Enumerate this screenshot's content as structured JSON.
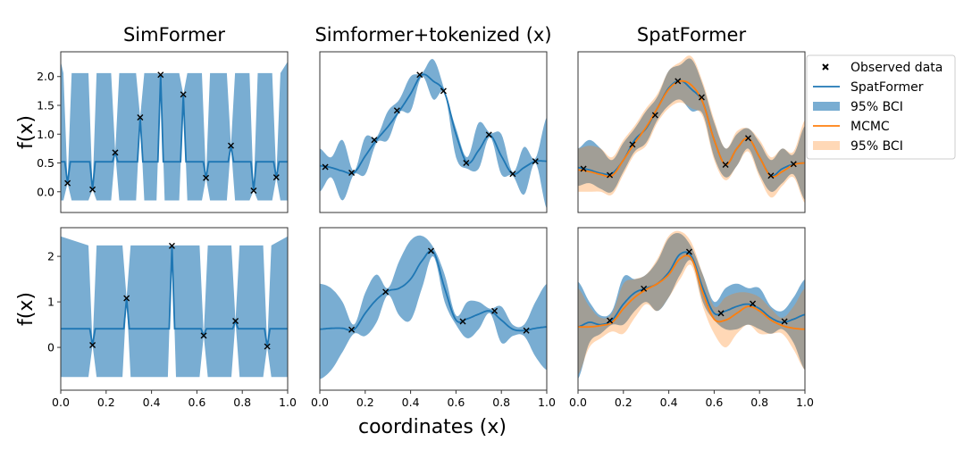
{
  "chart_data": {
    "type": "line",
    "xlabel": "coordinates (x)",
    "ylabel": "f(x)",
    "xlim": [
      0,
      1
    ],
    "x_ticks": [
      "0.0",
      "0.2",
      "0.4",
      "0.6",
      "0.8",
      "1.0"
    ],
    "colors": {
      "spatformer": "#1f77b4",
      "spatformer_band": "#1f77b4",
      "mcmc": "#ff7f0e",
      "mcmc_band": "#ffbb88",
      "observed": "#000000"
    },
    "legend": {
      "placement": "right",
      "entries": [
        "Observed data",
        "SpatFormer",
        "95% BCI",
        "MCMC",
        "95% BCI"
      ]
    },
    "columns": [
      "SimFormer",
      "Simformer+tokenized (x)",
      "SpatFormer"
    ],
    "rows": [
      {
        "ylim": [
          -0.36,
          2.43
        ],
        "y_ticks": [
          0.0,
          0.5,
          1.0,
          1.5,
          2.0
        ],
        "y_tick_labels": [
          "0.0",
          "0.5",
          "1.0",
          "1.5",
          "2.0"
        ],
        "panels": [
          {
            "title": "SimFormer",
            "kind": "simformer",
            "mean_baseline": 0.52,
            "band": [
              -0.15,
              2.06
            ],
            "observed": {
              "x": [
                0.03,
                0.14,
                0.24,
                0.35,
                0.44,
                0.54,
                0.64,
                0.75,
                0.85,
                0.95
              ],
              "y": [
                0.15,
                0.04,
                0.68,
                1.29,
                2.03,
                1.69,
                0.24,
                0.8,
                0.02,
                0.25
              ]
            }
          },
          {
            "title": "Simformer+tokenized (x)",
            "kind": "grid",
            "x": [
              0,
              0.05,
              0.1,
              0.15,
              0.2,
              0.25,
              0.3,
              0.35,
              0.4,
              0.45,
              0.5,
              0.55,
              0.6,
              0.65,
              0.7,
              0.75,
              0.8,
              0.85,
              0.9,
              0.95,
              1
            ],
            "mean": [
              0.45,
              0.42,
              0.36,
              0.33,
              0.62,
              0.9,
              1.13,
              1.4,
              1.7,
              2.03,
              1.92,
              1.72,
              1.0,
              0.5,
              0.72,
              0.98,
              0.62,
              0.31,
              0.42,
              0.53,
              0.53
            ],
            "upper": [
              0.75,
              0.6,
              0.9,
              0.36,
              0.95,
              0.95,
              1.4,
              1.6,
              2.0,
              2.06,
              2.3,
              1.76,
              1.1,
              0.6,
              1.2,
              1.02,
              1.0,
              0.34,
              0.78,
              0.58,
              1.3
            ],
            "lower": [
              0.0,
              0.25,
              -0.15,
              0.3,
              0.3,
              0.85,
              0.9,
              1.38,
              1.4,
              2.0,
              1.6,
              1.7,
              0.6,
              0.4,
              0.4,
              0.95,
              0.3,
              0.28,
              -0.05,
              0.5,
              -0.3
            ],
            "observed": {
              "x": [
                0.024,
                0.14,
                0.24,
                0.34,
                0.44,
                0.545,
                0.645,
                0.745,
                0.85,
                0.95
              ],
              "y": [
                0.43,
                0.33,
                0.9,
                1.41,
                2.03,
                1.75,
                0.5,
                0.99,
                0.31,
                0.53
              ]
            }
          },
          {
            "title": "SpatFormer",
            "kind": "grid",
            "x": [
              0,
              0.05,
              0.1,
              0.15,
              0.2,
              0.25,
              0.3,
              0.35,
              0.4,
              0.45,
              0.5,
              0.55,
              0.6,
              0.65,
              0.7,
              0.75,
              0.8,
              0.85,
              0.9,
              0.95,
              1
            ],
            "mean": [
              0.42,
              0.38,
              0.32,
              0.32,
              0.55,
              0.9,
              1.1,
              1.45,
              1.8,
              1.93,
              1.78,
              1.55,
              0.9,
              0.47,
              0.75,
              0.93,
              0.6,
              0.28,
              0.4,
              0.48,
              0.5
            ],
            "upper": [
              0.75,
              0.9,
              0.75,
              0.55,
              0.85,
              1.1,
              1.4,
              1.65,
              2.1,
              2.2,
              2.3,
              1.85,
              1.2,
              0.75,
              1.0,
              1.1,
              0.85,
              0.55,
              0.75,
              0.65,
              1.15
            ],
            "lower": [
              0.1,
              0.15,
              0.05,
              0.0,
              0.35,
              0.7,
              0.85,
              1.25,
              1.5,
              1.6,
              1.4,
              1.35,
              0.6,
              0.25,
              0.45,
              0.75,
              0.3,
              0.0,
              0.15,
              0.3,
              -0.15
            ],
            "mcmc_mean": [
              0.38,
              0.35,
              0.3,
              0.28,
              0.55,
              0.85,
              1.12,
              1.45,
              1.78,
              1.92,
              1.85,
              1.55,
              0.9,
              0.47,
              0.75,
              0.93,
              0.6,
              0.27,
              0.35,
              0.47,
              0.5
            ],
            "mcmc_upper": [
              0.75,
              0.8,
              0.75,
              0.6,
              0.9,
              1.15,
              1.45,
              1.7,
              2.1,
              2.25,
              2.35,
              1.9,
              1.25,
              0.75,
              1.05,
              1.1,
              0.9,
              0.6,
              0.75,
              0.7,
              1.25
            ],
            "mcmc_lower": [
              0.0,
              0.0,
              0.0,
              -0.05,
              0.3,
              0.65,
              0.8,
              1.2,
              1.45,
              1.55,
              1.45,
              1.3,
              0.55,
              0.2,
              0.45,
              0.7,
              0.25,
              -0.1,
              0.1,
              0.25,
              -0.2
            ],
            "observed": {
              "x": [
                0.024,
                0.14,
                0.24,
                0.34,
                0.44,
                0.545,
                0.65,
                0.75,
                0.85,
                0.95
              ],
              "y": [
                0.4,
                0.29,
                0.82,
                1.33,
                1.92,
                1.64,
                0.47,
                0.93,
                0.28,
                0.48
              ]
            }
          }
        ]
      },
      {
        "ylim": [
          -0.94,
          2.63
        ],
        "y_ticks": [
          0,
          1,
          2
        ],
        "y_tick_labels": [
          "0",
          "1",
          "2"
        ],
        "panels": [
          {
            "title": "",
            "kind": "simformer",
            "mean_baseline": 0.41,
            "band": [
              -0.65,
              2.24
            ],
            "observed": {
              "x": [
                0.14,
                0.29,
                0.49,
                0.63,
                0.77,
                0.91
              ],
              "y": [
                0.05,
                1.08,
                2.23,
                0.26,
                0.58,
                0.02
              ]
            }
          },
          {
            "title": "",
            "kind": "grid",
            "x": [
              0,
              0.05,
              0.1,
              0.15,
              0.2,
              0.25,
              0.3,
              0.35,
              0.4,
              0.45,
              0.5,
              0.55,
              0.6,
              0.65,
              0.7,
              0.75,
              0.8,
              0.85,
              0.9,
              0.95,
              1
            ],
            "mean": [
              0.4,
              0.42,
              0.42,
              0.39,
              0.75,
              1.05,
              1.24,
              1.3,
              1.5,
              1.9,
              2.1,
              1.3,
              0.6,
              0.63,
              0.73,
              0.8,
              0.6,
              0.4,
              0.37,
              0.42,
              0.45
            ],
            "upper": [
              1.4,
              1.3,
              1.0,
              0.5,
              1.2,
              1.6,
              1.3,
              1.9,
              2.35,
              2.45,
              2.2,
              1.6,
              0.7,
              1.0,
              1.0,
              0.85,
              0.9,
              0.5,
              0.5,
              1.0,
              1.4
            ],
            "lower": [
              -0.7,
              -0.5,
              -0.1,
              0.3,
              0.25,
              0.55,
              1.15,
              0.7,
              0.6,
              1.3,
              2.0,
              1.0,
              0.5,
              0.2,
              0.4,
              0.75,
              0.1,
              0.25,
              0.25,
              -0.2,
              -0.5
            ],
            "observed": {
              "x": [
                0.14,
                0.29,
                0.49,
                0.63,
                0.77,
                0.91
              ],
              "y": [
                0.39,
                1.22,
                2.12,
                0.57,
                0.8,
                0.37
              ]
            }
          },
          {
            "title": "",
            "kind": "grid",
            "x": [
              0,
              0.05,
              0.1,
              0.15,
              0.2,
              0.25,
              0.3,
              0.35,
              0.4,
              0.45,
              0.5,
              0.55,
              0.6,
              0.65,
              0.7,
              0.75,
              0.8,
              0.85,
              0.9,
              0.95,
              1
            ],
            "mean": [
              0.45,
              0.55,
              0.5,
              0.6,
              0.95,
              1.2,
              1.3,
              1.4,
              1.65,
              2.05,
              2.0,
              1.3,
              0.75,
              0.8,
              0.9,
              0.95,
              0.85,
              0.65,
              0.55,
              0.62,
              0.72
            ],
            "upper": [
              1.45,
              1.0,
              0.7,
              0.8,
              1.55,
              1.5,
              1.6,
              1.9,
              2.4,
              2.5,
              2.2,
              1.6,
              1.0,
              1.3,
              1.4,
              1.3,
              1.3,
              0.9,
              0.8,
              1.1,
              1.5
            ],
            "lower": [
              -0.7,
              0.1,
              0.3,
              0.5,
              0.5,
              0.8,
              1.0,
              0.8,
              1.1,
              1.6,
              1.9,
              1.0,
              0.6,
              0.4,
              0.4,
              0.5,
              0.4,
              0.3,
              0.4,
              0.1,
              -0.5
            ],
            "mcmc_mean": [
              0.45,
              0.45,
              0.48,
              0.55,
              0.85,
              1.1,
              1.27,
              1.4,
              1.6,
              1.95,
              1.95,
              1.2,
              0.62,
              0.6,
              0.75,
              0.9,
              0.8,
              0.6,
              0.48,
              0.42,
              0.4
            ],
            "mcmc_upper": [
              1.3,
              0.9,
              0.65,
              0.75,
              1.4,
              1.5,
              1.6,
              1.95,
              2.45,
              2.55,
              2.3,
              1.6,
              0.9,
              1.1,
              1.2,
              1.2,
              1.1,
              0.85,
              0.65,
              0.9,
              1.3
            ],
            "mcmc_lower": [
              -0.6,
              0.0,
              0.2,
              0.35,
              0.3,
              0.65,
              0.95,
              0.8,
              1.1,
              1.5,
              1.8,
              0.9,
              0.3,
              0.0,
              0.3,
              0.5,
              0.3,
              0.3,
              0.3,
              -0.05,
              -0.5
            ],
            "observed": {
              "x": [
                0.14,
                0.29,
                0.49,
                0.63,
                0.77,
                0.91
              ],
              "y": [
                0.59,
                1.29,
                2.1,
                0.75,
                0.96,
                0.57
              ]
            }
          }
        ]
      }
    ]
  }
}
